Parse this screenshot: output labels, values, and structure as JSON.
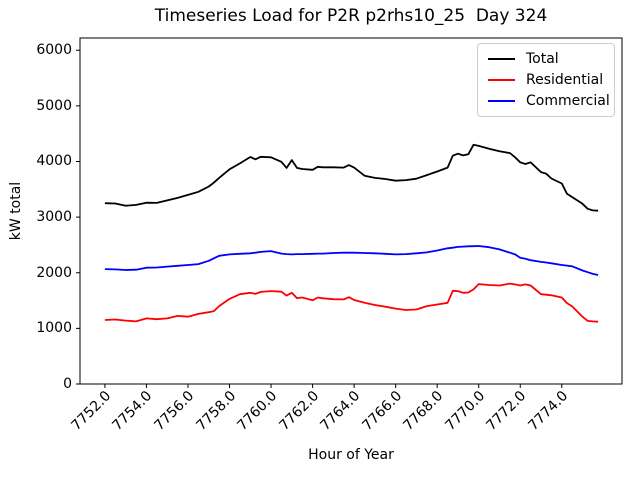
{
  "chart_data": {
    "type": "line",
    "title": "Timeseries Load for P2R p2rhs10_25  Day 324",
    "xlabel": "Hour of Year",
    "ylabel": "kW total",
    "xlim": [
      7750.8,
      7776.9
    ],
    "ylim": [
      0,
      6220
    ],
    "grid": false,
    "legend_position": "upper right",
    "x_tick_labels": [
      "7752.0",
      "7754.0",
      "7756.0",
      "7758.0",
      "7760.0",
      "7762.0",
      "7764.0",
      "7766.0",
      "7768.0",
      "7770.0",
      "7772.0",
      "7774.0"
    ],
    "y_tick_labels": [
      "0",
      "1000",
      "2000",
      "3000",
      "4000",
      "5000",
      "6000"
    ],
    "x": [
      7752.0,
      7752.5,
      7753.0,
      7753.5,
      7754.0,
      7754.5,
      7755.0,
      7755.5,
      7756.0,
      7756.5,
      7757.0,
      7757.25,
      7757.5,
      7758.0,
      7758.5,
      7759.0,
      7759.25,
      7759.5,
      7760.0,
      7760.5,
      7760.75,
      7761.0,
      7761.25,
      7761.5,
      7762.0,
      7762.25,
      7762.5,
      7763.0,
      7763.5,
      7763.75,
      7764.0,
      7764.5,
      7765.0,
      7765.5,
      7766.0,
      7766.5,
      7767.0,
      7767.5,
      7768.0,
      7768.5,
      7768.75,
      7769.0,
      7769.25,
      7769.5,
      7769.75,
      7770.0,
      7770.5,
      7771.0,
      7771.5,
      7771.75,
      7772.0,
      7772.25,
      7772.5,
      7773.0,
      7773.25,
      7773.5,
      7774.0,
      7774.25,
      7774.5,
      7775.0,
      7775.25,
      7775.5,
      7775.75
    ],
    "series": [
      {
        "name": "Total",
        "color": "#000000",
        "values": [
          3250,
          3245,
          3205,
          3220,
          3260,
          3255,
          3300,
          3345,
          3400,
          3455,
          3550,
          3620,
          3705,
          3860,
          3965,
          4080,
          4040,
          4085,
          4075,
          3995,
          3885,
          4025,
          3885,
          3865,
          3850,
          3905,
          3895,
          3895,
          3890,
          3935,
          3890,
          3745,
          3705,
          3685,
          3655,
          3665,
          3690,
          3755,
          3820,
          3890,
          4105,
          4140,
          4110,
          4130,
          4300,
          4280,
          4230,
          4185,
          4150,
          4075,
          3985,
          3955,
          3985,
          3810,
          3780,
          3695,
          3605,
          3420,
          3360,
          3240,
          3150,
          3120,
          3115
        ]
      },
      {
        "name": "Residential",
        "color": "#ff0000",
        "values": [
          1150,
          1160,
          1140,
          1125,
          1180,
          1165,
          1180,
          1225,
          1210,
          1260,
          1290,
          1310,
          1400,
          1530,
          1615,
          1640,
          1620,
          1655,
          1670,
          1660,
          1590,
          1640,
          1545,
          1555,
          1505,
          1555,
          1540,
          1525,
          1520,
          1560,
          1510,
          1460,
          1420,
          1390,
          1355,
          1330,
          1340,
          1400,
          1430,
          1460,
          1675,
          1670,
          1640,
          1645,
          1700,
          1795,
          1780,
          1770,
          1805,
          1790,
          1770,
          1790,
          1770,
          1615,
          1605,
          1595,
          1555,
          1455,
          1395,
          1210,
          1135,
          1125,
          1120
        ]
      },
      {
        "name": "Commercial",
        "color": "#0000ff",
        "values": [
          2065,
          2060,
          2050,
          2055,
          2090,
          2095,
          2110,
          2125,
          2140,
          2155,
          2215,
          2260,
          2305,
          2330,
          2340,
          2350,
          2360,
          2375,
          2390,
          2345,
          2335,
          2330,
          2335,
          2335,
          2340,
          2345,
          2345,
          2355,
          2360,
          2360,
          2360,
          2355,
          2350,
          2340,
          2330,
          2335,
          2350,
          2365,
          2400,
          2440,
          2450,
          2465,
          2470,
          2475,
          2478,
          2480,
          2460,
          2420,
          2360,
          2330,
          2270,
          2250,
          2225,
          2195,
          2185,
          2170,
          2140,
          2128,
          2115,
          2040,
          2010,
          1980,
          1960
        ]
      }
    ]
  }
}
